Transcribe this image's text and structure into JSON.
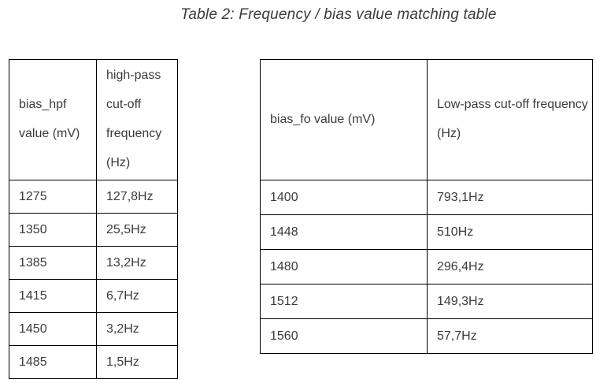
{
  "title": "Table 2: Frequency / bias value matching table",
  "colors": {
    "background": "#ffffff",
    "text": "#3b3b3b",
    "table_border": "#000000"
  },
  "tables": {
    "hpf": {
      "headers": [
        "bias_hpf value (mV)",
        "high-pass cut-off frequency (Hz)"
      ],
      "rows": [
        [
          "1275",
          "127,8Hz"
        ],
        [
          "1350",
          "25,5Hz"
        ],
        [
          "1385",
          "13,2Hz"
        ],
        [
          "1415",
          "6,7Hz"
        ],
        [
          "1450",
          "3,2Hz"
        ],
        [
          "1485",
          "1,5Hz"
        ]
      ]
    },
    "lpf": {
      "headers": [
        "bias_fo value (mV)",
        "Low-pass cut-off frequency (Hz)"
      ],
      "rows": [
        [
          "1400",
          "793,1Hz"
        ],
        [
          "1448",
          "510Hz"
        ],
        [
          "1480",
          "296,4Hz"
        ],
        [
          "1512",
          "149,3Hz"
        ],
        [
          "1560",
          "57,7Hz"
        ]
      ]
    }
  }
}
